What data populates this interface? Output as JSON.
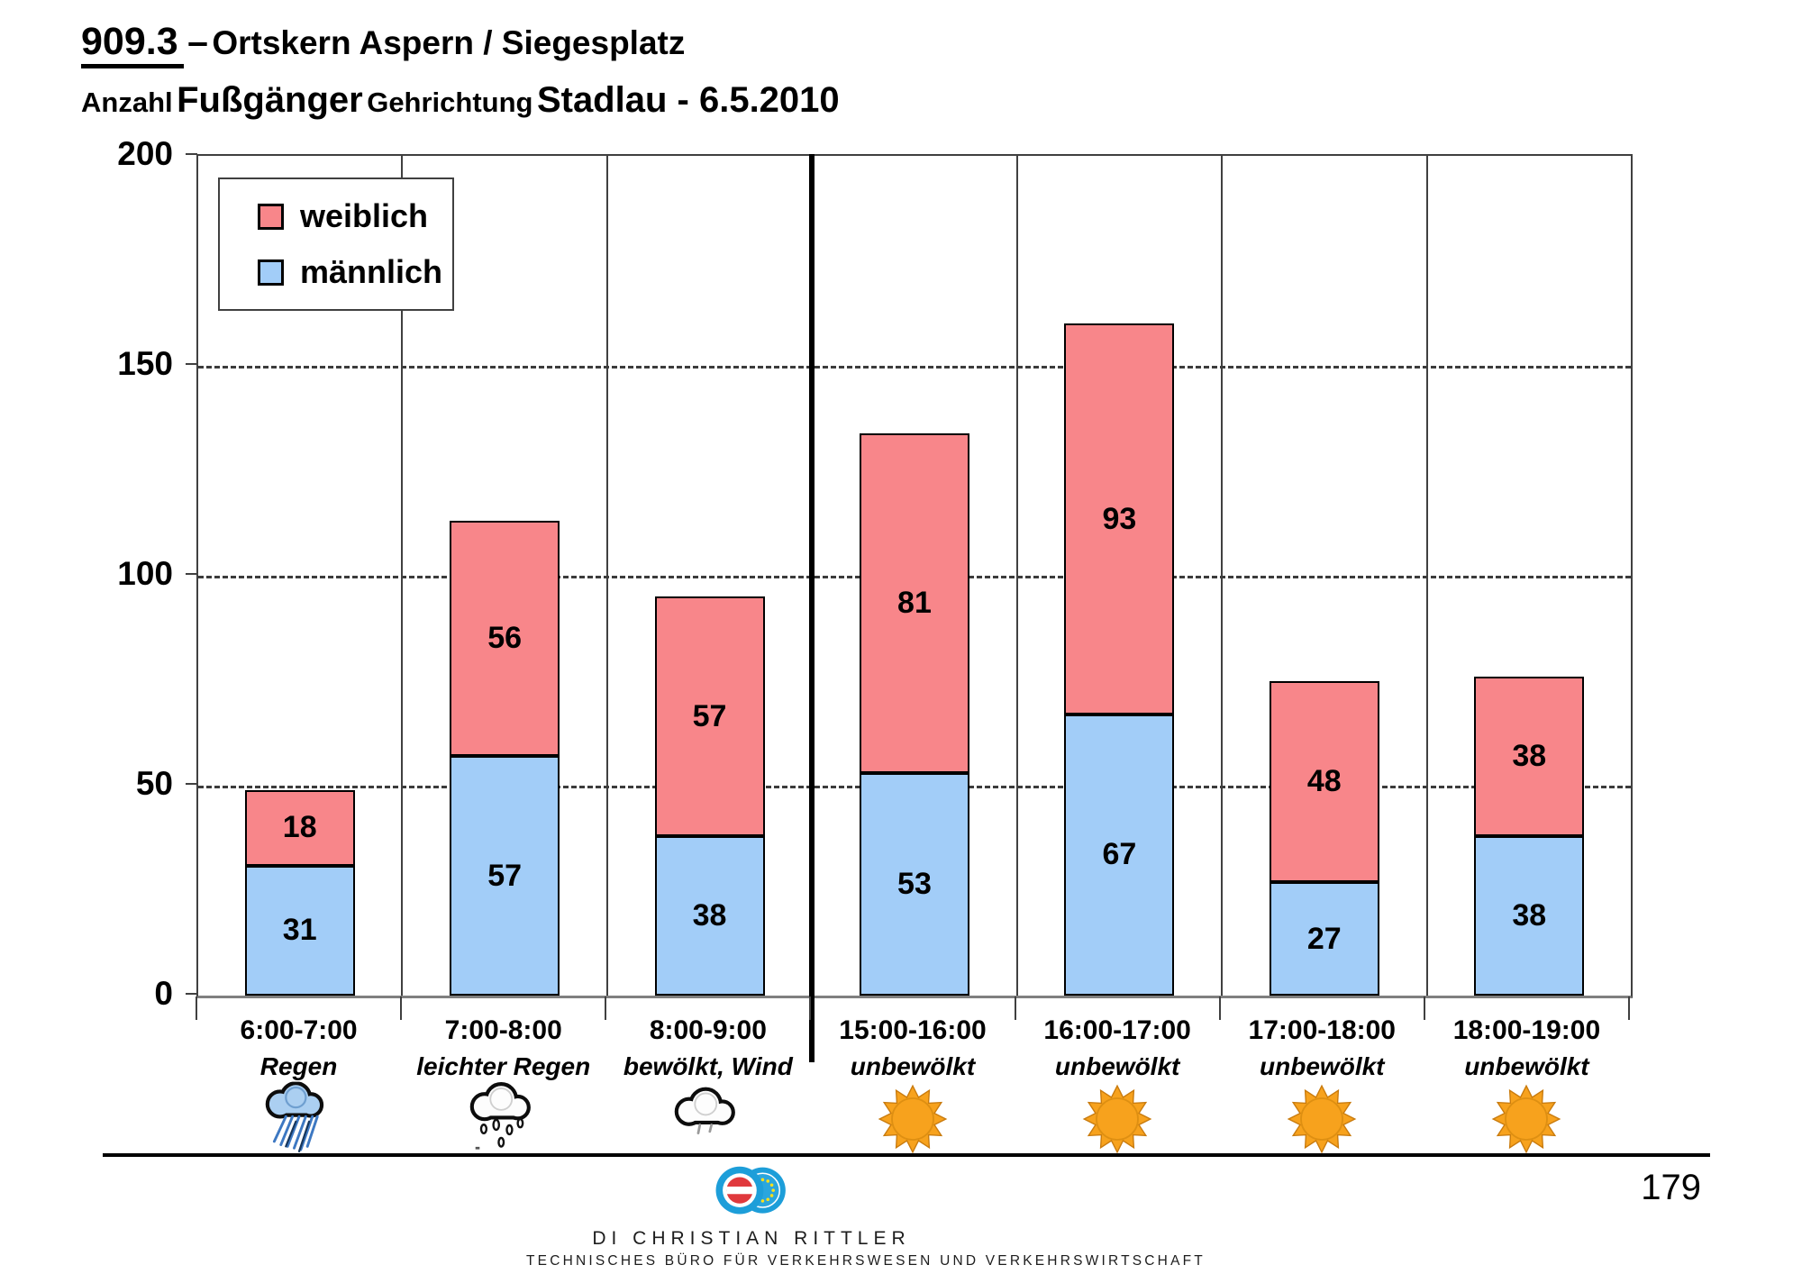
{
  "header": {
    "number": "909.3",
    "dash": "–",
    "title": "Ortskern Aspern / Siegesplatz",
    "sub1": "Anzahl",
    "sub2": "Fußgänger",
    "sub3": "Gehrichtung",
    "sub4": "Stadlau - 6.5.2010"
  },
  "page": {
    "number": "179"
  },
  "footer": {
    "name": "DI Christian Rittler",
    "line2": "Technisches Büro für Verkehrswesen und Verkehrswirtschaft",
    "logo_badges": [
      "technische-bueros-austria-badge",
      "ingenieurbueros-eu-stars-badge"
    ]
  },
  "chart_data": {
    "type": "bar",
    "stacked": true,
    "title": "Anzahl Fußgänger Gehrichtung Stadlau - 6.5.2010",
    "ylabel": "",
    "xlabel": "",
    "ylim": [
      0,
      200
    ],
    "yticks": [
      0,
      50,
      100,
      150,
      200
    ],
    "grid": {
      "horizontal": "dashed at 50/100/150",
      "vertical": "solid at column boundaries"
    },
    "legend_position": "top-left inside plot",
    "legend": [
      {
        "label": "weiblich",
        "color": "#F8868A"
      },
      {
        "label": "männlich",
        "color": "#A2CDF8"
      }
    ],
    "categories": [
      {
        "time": "6:00-7:00",
        "weather": "Regen",
        "icon": "rain-heavy-icon"
      },
      {
        "time": "7:00-8:00",
        "weather": "leichter Regen",
        "icon": "rain-light-icon"
      },
      {
        "time": "8:00-9:00",
        "weather": "bewölkt, Wind",
        "icon": "cloud-icon"
      },
      {
        "time": "15:00-16:00",
        "weather": "unbewölkt",
        "icon": "sun-icon"
      },
      {
        "time": "16:00-17:00",
        "weather": "unbewölkt",
        "icon": "sun-icon"
      },
      {
        "time": "17:00-18:00",
        "weather": "unbewölkt",
        "icon": "sun-icon"
      },
      {
        "time": "18:00-19:00",
        "weather": "unbewölkt",
        "icon": "sun-icon"
      }
    ],
    "series": [
      {
        "name": "männlich",
        "color": "#A2CDF8",
        "values": [
          31,
          57,
          38,
          53,
          67,
          27,
          38
        ]
      },
      {
        "name": "weiblich",
        "color": "#F8868A",
        "values": [
          18,
          56,
          57,
          81,
          93,
          48,
          38
        ]
      }
    ],
    "totals": [
      49,
      113,
      95,
      134,
      160,
      75,
      76
    ],
    "separator_after_category_index": 2
  }
}
